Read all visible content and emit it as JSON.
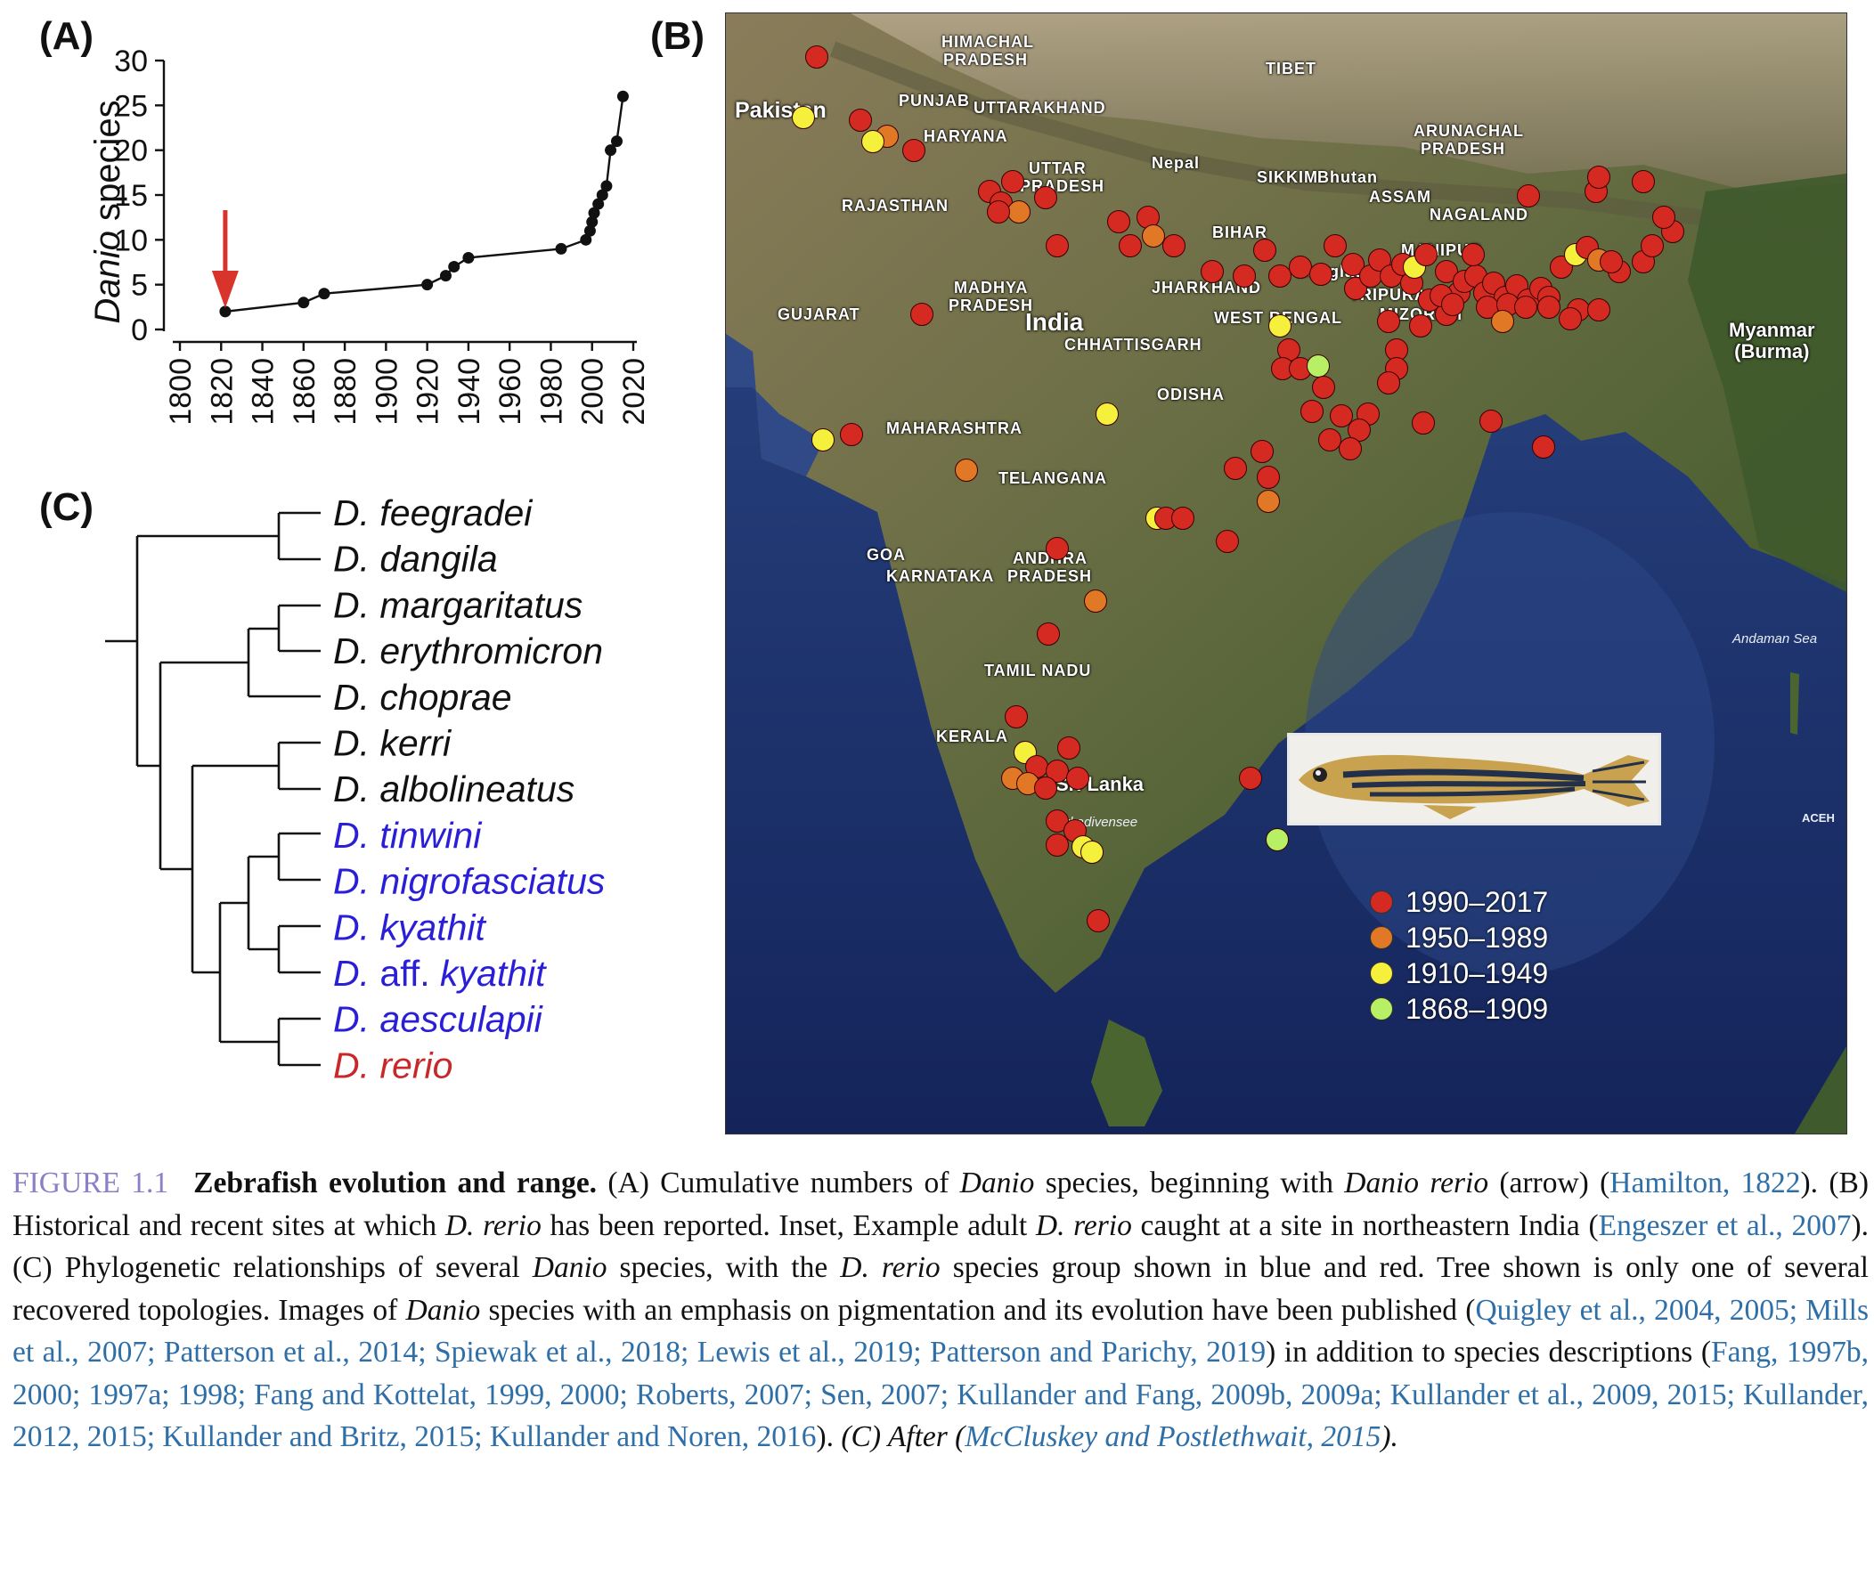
{
  "panel_labels": {
    "a": "(A)",
    "b": "(B)",
    "c": "(C)"
  },
  "chart_data": {
    "type": "line",
    "title": "",
    "xlabel": "",
    "ylabel_italic": "Danio",
    "ylabel_rest": " species",
    "xlim": [
      1800,
      2020
    ],
    "ylim": [
      0,
      30
    ],
    "xticks": [
      1800,
      1820,
      1840,
      1860,
      1880,
      1900,
      1920,
      1940,
      1960,
      1980,
      2000,
      2020
    ],
    "yticks": [
      0,
      5,
      10,
      15,
      20,
      25,
      30
    ],
    "x": [
      1822,
      1860,
      1870,
      1920,
      1929,
      1933,
      1940,
      1985,
      1997,
      1999,
      2000,
      2001,
      2003,
      2005,
      2007,
      2009,
      2012,
      2015
    ],
    "y": [
      2,
      3,
      4,
      5,
      6,
      7,
      8,
      9,
      10,
      11,
      12,
      13,
      14,
      15,
      16,
      20,
      21,
      26
    ],
    "arrow_x": 1822,
    "arrow_color": "#d9342b"
  },
  "tree": {
    "species": [
      {
        "prefix": "D.",
        "name": "feegradei",
        "color": "#111111"
      },
      {
        "prefix": "D.",
        "name": "dangila",
        "color": "#111111"
      },
      {
        "prefix": "D.",
        "name": "margaritatus",
        "color": "#111111"
      },
      {
        "prefix": "D.",
        "name": "erythromicron",
        "color": "#111111"
      },
      {
        "prefix": "D.",
        "name": "choprae",
        "color": "#111111"
      },
      {
        "prefix": "D.",
        "name": "kerri",
        "color": "#111111"
      },
      {
        "prefix": "D.",
        "name": "albolineatus",
        "color": "#111111"
      },
      {
        "prefix": "D.",
        "name": "tinwini",
        "color": "#2a1fd6"
      },
      {
        "prefix": "D.",
        "name": "nigrofasciatus",
        "color": "#2a1fd6"
      },
      {
        "prefix": "D.",
        "name": "kyathit",
        "color": "#2a1fd6"
      },
      {
        "prefix": "D. aff.",
        "name": "kyathit",
        "color": "#2a1fd6"
      },
      {
        "prefix": "D.",
        "name": "aesculapii",
        "color": "#2a1fd6"
      },
      {
        "prefix": "D.",
        "name": "rerio",
        "color": "#c8282a"
      }
    ]
  },
  "map": {
    "places": [
      {
        "t": "HIMACHAL"
      },
      {
        "t": "PRADESH"
      },
      {
        "t": "PUNJAB"
      },
      {
        "t": "UTTARAKHAND"
      },
      {
        "t": "HARYANA"
      },
      {
        "t": "TIBET"
      },
      {
        "t": "UTTAR"
      },
      {
        "t": "PRADESH"
      },
      {
        "t": "RAJASTHAN"
      },
      {
        "t": "Nepal"
      },
      {
        "t": "SIKKIM"
      },
      {
        "t": "Bhutan"
      },
      {
        "t": "ARUNACHAL"
      },
      {
        "t": "PRADESH"
      },
      {
        "t": "ASSAM"
      },
      {
        "t": "NAGALAND"
      },
      {
        "t": "BIHAR"
      },
      {
        "t": "MANIPUR"
      },
      {
        "t": "Bangladesh"
      },
      {
        "t": "MADHYA"
      },
      {
        "t": "PRADESH"
      },
      {
        "t": "JHARKHAND"
      },
      {
        "t": "TRIPURA"
      },
      {
        "t": "GUJARAT"
      },
      {
        "t": "WEST BENGAL"
      },
      {
        "t": "MIZORAM"
      },
      {
        "t": "CHHATTISGARH"
      },
      {
        "t": "ODISHA"
      },
      {
        "t": "MAHARASHTRA"
      },
      {
        "t": "TELANGANA"
      },
      {
        "t": "GOA"
      },
      {
        "t": "KARNATAKA"
      },
      {
        "t": "ANDHRA"
      },
      {
        "t": "PRADESH"
      },
      {
        "t": "TAMIL NADU"
      },
      {
        "t": "KERALA"
      }
    ],
    "countries": {
      "pakistan": "Pakistan",
      "india": "India",
      "myanmar": "Myanmar",
      "burma": "(Burma)",
      "srilanka": "Sri Lanka"
    },
    "water": {
      "andaman": "Andaman Sea",
      "lakkadiv": "Lakkadivensee",
      "aceh": "ACEH"
    },
    "legend": [
      {
        "label": "1990–2017",
        "color": "#d42a22"
      },
      {
        "label": "1950–1989",
        "color": "#e07826"
      },
      {
        "label": "1910–1949",
        "color": "#f5f03c"
      },
      {
        "label": "1868–1909",
        "color": "#b7f064"
      }
    ],
    "colors": {
      "red": "#d42a22",
      "orange": "#e07826",
      "yellow": "#f5f03c",
      "green": "#b7f064"
    }
  },
  "caption": {
    "fig": "FIGURE 1.1",
    "title": "Zebrafish evolution and range.",
    "s1": " (A) Cumulative numbers of ",
    "danio1": "Danio",
    "s2": " species, beginning with ",
    "danio_rerio": "Danio rerio",
    "s3": " (arrow) (",
    "l1": "Hamilton, 1822",
    "s4": "). (B) Historical and recent sites at which ",
    "drerio1": "D. rerio",
    "s5": " has been reported. Inset, Example adult ",
    "drerio2": "D. rerio",
    "s6": " caught at a site in northeastern India (",
    "l2": "Engeszer et al., 2007",
    "s7": "). (C) Phylogenetic relationships of several ",
    "danio2": "Danio",
    "s8": " species, with the ",
    "drerio3": "D. rerio",
    "s9": " species group shown in blue and red. Tree shown is only one of several recovered topologies. Images of ",
    "danio3": "Danio",
    "s10": " species with an emphasis on pigmentation and its evolution have been published (",
    "l3": "Quigley et al., 2004, 2005; Mills et al., 2007; Patterson et al., 2014; Spiewak et al., 2018; Lewis et al., 2019; Patterson and Parichy, 2019",
    "s11": ") in addition to species descriptions (",
    "l4": "Fang, 1997b, 2000; 1997a; 1998; Fang and Kottelat, 1999, 2000; Roberts, 2007; Sen, 2007; Kullander and Fang, 2009b, 2009a; Kullander et al., 2009, 2015; Kullander, 2012, 2015; Kullander and Britz, 2015; Kullander and Noren, 2016",
    "s12": "). ",
    "after": "(C) After (",
    "l5": "McCluskey and Postlethwait, 2015",
    "end": ")."
  }
}
